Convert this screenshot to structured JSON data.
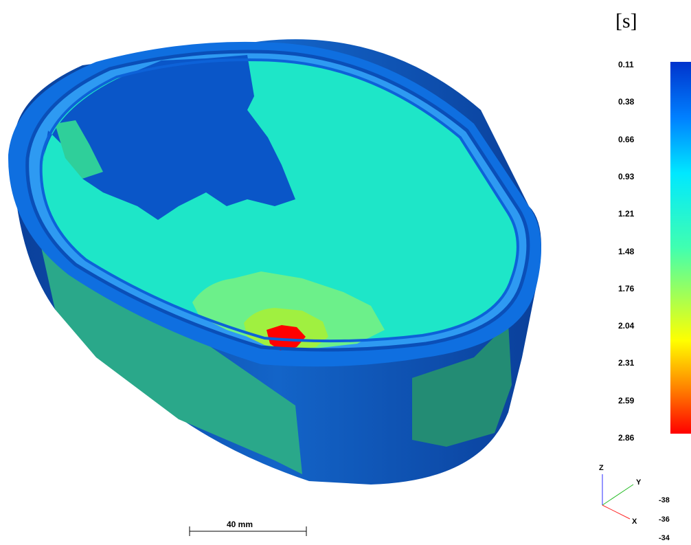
{
  "legend": {
    "unit": "[s]",
    "labels": [
      "0.11",
      "0.38",
      "0.66",
      "0.93",
      "1.21",
      "1.48",
      "1.76",
      "2.04",
      "2.31",
      "2.59",
      "2.86"
    ],
    "colors": [
      "#0033cc",
      "#0080ff",
      "#00e8ff",
      "#40ffb0",
      "#ffff00",
      "#ff8000",
      "#ff0000"
    ]
  },
  "scale_bar": {
    "label": "40 mm"
  },
  "axes": {
    "z": "Z",
    "y": "Y",
    "x": "X"
  },
  "coords": [
    "-38",
    "-36",
    "-34"
  ],
  "model": {
    "colors": {
      "dark_blue": "#0a56c8",
      "blue": "#1277e8",
      "cyan": "#1ee6c8",
      "green_cyan": "#2fcf9a",
      "teal_side": "#2aa88a",
      "yellow_green": "#a0f040",
      "red": "#ff0000"
    }
  }
}
